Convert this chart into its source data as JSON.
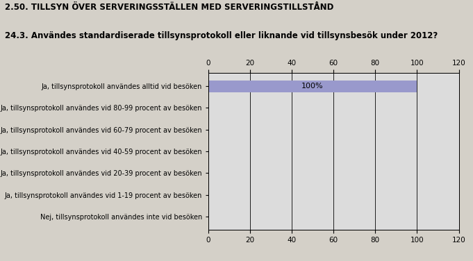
{
  "title": "2.50. TILLSYN ÖVER SERVERINGSSTÄLLEN MED SERVERINGSTILLSTÅND",
  "subtitle": "24.3. Användes standardiserade tillsynsprotokoll eller liknande vid tillsynsbesök under 2012?",
  "categories": [
    "Ja, tillsynsprotokoll användes alltid vid besöken",
    "Ja, tillsynsprotokoll användes vid 80-99 procent av besöken",
    "Ja, tillsynsprotokoll användes vid 60-79 procent av besöken",
    "Ja, tillsynsprotokoll användes vid 40-59 procent av besöken",
    "Ja, tillsynsprotokoll användes vid 20-39 procent av besöken",
    "Ja, tillsynsprotokoll användes vid 1-19 procent av besöken",
    "Nej, tillsynsprotokoll användes inte vid besöken"
  ],
  "values": [
    100,
    0,
    0,
    0,
    0,
    0,
    0
  ],
  "bar_color": "#9999cc",
  "bar_label": "100%",
  "background_color": "#d4d0c8",
  "plot_background_color": "#dcdcdc",
  "xlim": [
    0,
    120
  ],
  "xticks": [
    0,
    20,
    40,
    60,
    80,
    100,
    120
  ],
  "title_fontsize": 8.5,
  "subtitle_fontsize": 8.5,
  "label_fontsize": 7,
  "tick_fontsize": 7.5,
  "bar_label_fontsize": 8
}
